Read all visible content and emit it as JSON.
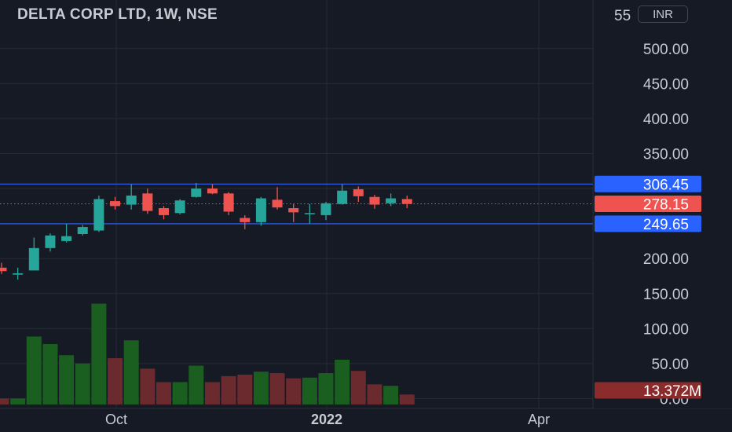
{
  "header": {
    "title": "DELTA CORP LTD, 1W, NSE",
    "currency_label": "INR",
    "top_label_clip": "55"
  },
  "colors": {
    "background": "#161a25",
    "grid": "#252a36",
    "up": "#26a69a",
    "down": "#ef5350",
    "volume_up": "#1a5e20",
    "volume_down": "#6b2a2e",
    "level_line": "#2962ff",
    "text": "#c8cbd3"
  },
  "chart_data": {
    "type": "candlestick",
    "title": "DELTA CORP LTD, 1W, NSE",
    "y_range": [
      0,
      550
    ],
    "y_ticks": [
      "500.00",
      "450.00",
      "400.00",
      "350.00",
      "200.00",
      "150.00",
      "100.00",
      "50.00",
      "0.00"
    ],
    "x_ticks": [
      "Oct",
      "2022",
      "Apr"
    ],
    "price_labels": [
      {
        "text": "306.45",
        "kind": "level"
      },
      {
        "text": "278.15",
        "kind": "last"
      },
      {
        "text": "249.65",
        "kind": "level"
      },
      {
        "text": "13.372M",
        "kind": "volume"
      }
    ],
    "horizontal_levels": [
      306.45,
      249.65
    ],
    "last_price": 278.15,
    "candles": [
      {
        "o": 187,
        "h": 194,
        "l": 178,
        "c": 182
      },
      {
        "o": 177,
        "h": 187,
        "l": 170,
        "c": 179
      },
      {
        "o": 183,
        "h": 230,
        "l": 183,
        "c": 215
      },
      {
        "o": 215,
        "h": 236,
        "l": 210,
        "c": 233
      },
      {
        "o": 225,
        "h": 250,
        "l": 223,
        "c": 232
      },
      {
        "o": 235,
        "h": 248,
        "l": 233,
        "c": 245
      },
      {
        "o": 240,
        "h": 290,
        "l": 238,
        "c": 285
      },
      {
        "o": 282,
        "h": 288,
        "l": 270,
        "c": 275
      },
      {
        "o": 277,
        "h": 306,
        "l": 270,
        "c": 290
      },
      {
        "o": 293,
        "h": 300,
        "l": 264,
        "c": 268
      },
      {
        "o": 272,
        "h": 275,
        "l": 256,
        "c": 262
      },
      {
        "o": 265,
        "h": 285,
        "l": 263,
        "c": 283
      },
      {
        "o": 288,
        "h": 308,
        "l": 287,
        "c": 300
      },
      {
        "o": 300,
        "h": 306,
        "l": 292,
        "c": 293
      },
      {
        "o": 293,
        "h": 295,
        "l": 262,
        "c": 267
      },
      {
        "o": 258,
        "h": 262,
        "l": 242,
        "c": 252
      },
      {
        "o": 252,
        "h": 288,
        "l": 247,
        "c": 286
      },
      {
        "o": 284,
        "h": 302,
        "l": 270,
        "c": 273
      },
      {
        "o": 272,
        "h": 278,
        "l": 252,
        "c": 266
      },
      {
        "o": 264,
        "h": 278,
        "l": 250,
        "c": 265
      },
      {
        "o": 262,
        "h": 281,
        "l": 255,
        "c": 279
      },
      {
        "o": 278,
        "h": 306,
        "l": 277,
        "c": 297
      },
      {
        "o": 299,
        "h": 303,
        "l": 281,
        "c": 289
      },
      {
        "o": 288,
        "h": 291,
        "l": 271,
        "c": 277
      },
      {
        "o": 279,
        "h": 293,
        "l": 275,
        "c": 286
      },
      {
        "o": 285,
        "h": 290,
        "l": 272,
        "c": 278
      }
    ],
    "volume": [
      8,
      8,
      91,
      81,
      66,
      55,
      135,
      62,
      86,
      48,
      30,
      30,
      52,
      30,
      38,
      40,
      44,
      42,
      35,
      36,
      42,
      60,
      45,
      27,
      25,
      13.372
    ],
    "volume_unit": "M"
  }
}
